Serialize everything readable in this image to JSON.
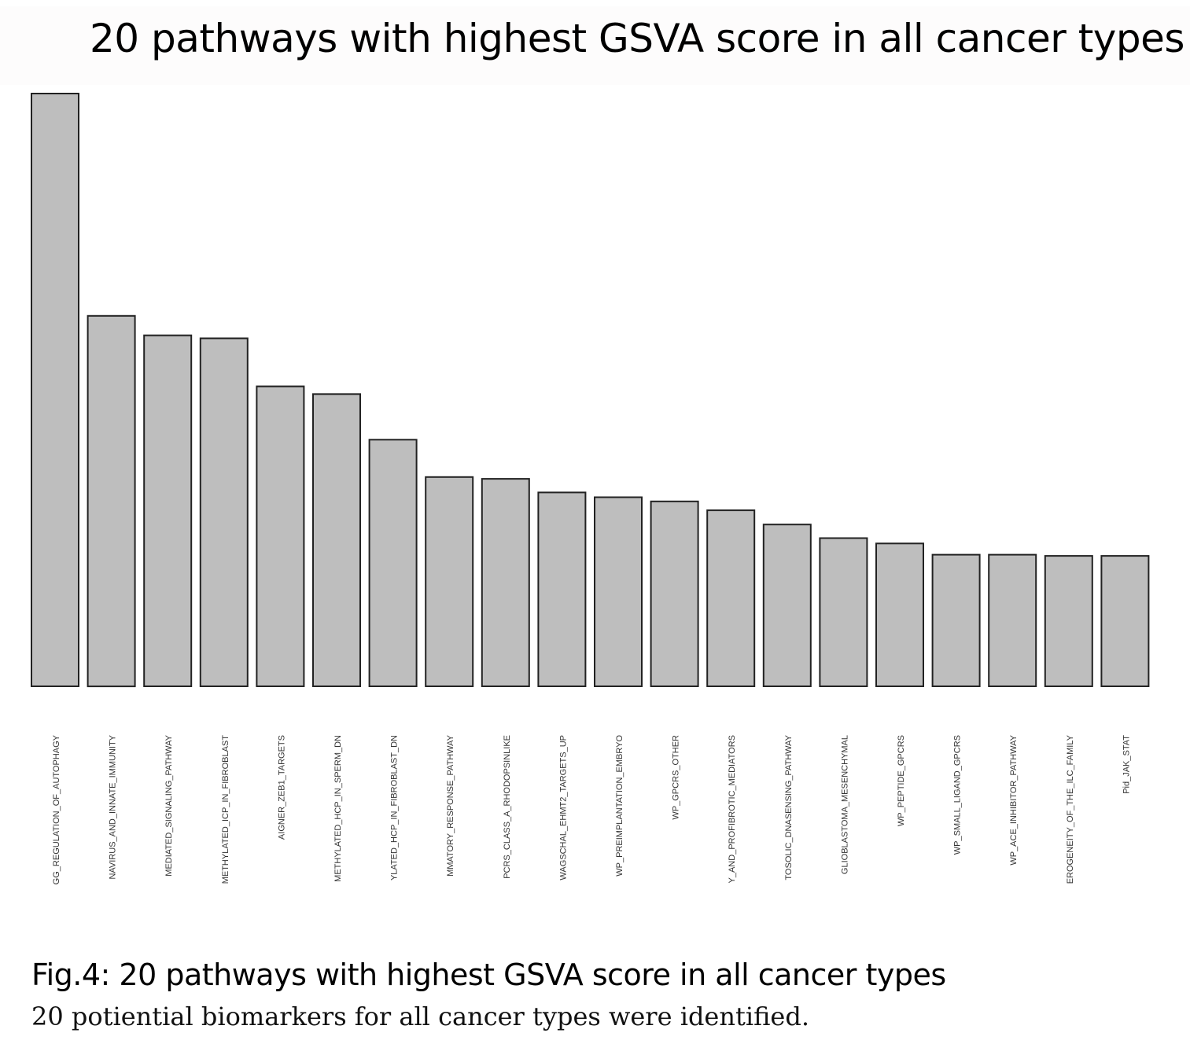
{
  "chart_data": {
    "type": "bar",
    "title": "20 pathways with highest GSVA score in all cancer types",
    "categories": [
      "GG_REGULATION_OF_AUTOPHAGY",
      "NAVIRUS_AND_INNATE_IMMUNITY",
      "MEDIATED_SIGNALING_PATHWAY",
      "METHYLATED_ICP_IN_FIBROBLAST",
      "AIGNER_ZEB1_TARGETS",
      "METHYLATED_HCP_IN_SPERM_DN",
      "YLATED_HCP_IN_FIBROBLAST_DN",
      "MMATORY_RESPONSE_PATHWAY",
      "PCRS_CLASS_A_RHODOPSINLIKE",
      "WAGSCHAL_EHMT2_TARGETS_UP",
      "WP_PREIMPLANTATION_EMBRYO",
      "WP_GPCRS_OTHER",
      "Y_AND_PROFIBROTIC_MEDIATORS",
      "TOSOLIC_DNASENSING_PATHWAY",
      "GLIOBLASTOMA_MESENCHYMAL",
      "WP_PEPTIDE_GPCRS",
      "WP_SMALL_LIGAND_GPCRS",
      "WP_ACE_INHIBITOR_PATHWAY",
      "EROGENEITY_OF_THE_ILC_FAMILY",
      "Pid_JAK_STAT"
    ],
    "values": [
      1.0,
      0.625,
      0.592,
      0.587,
      0.506,
      0.493,
      0.416,
      0.353,
      0.35,
      0.327,
      0.319,
      0.312,
      0.297,
      0.273,
      0.25,
      0.241,
      0.222,
      0.222,
      0.22,
      0.22
    ],
    "ylim": [
      0,
      1.0
    ],
    "xlabel": "",
    "ylabel": "",
    "grid": false,
    "bar_color": "#bebebe",
    "bar_stroke": "#222222"
  },
  "caption": {
    "title": "Fig.4: 20 pathways with highest GSVA score in all cancer types",
    "text": "20 potiential biomarkers for all cancer types were identified."
  }
}
